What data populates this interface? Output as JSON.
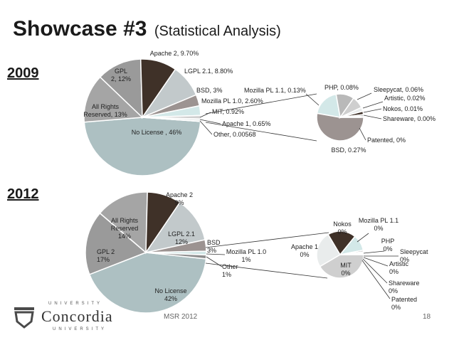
{
  "slide": {
    "title": "Showcase #3",
    "subtitle": "(Statistical Analysis)",
    "footer_venue": "MSR 2012",
    "page_number": "18",
    "logo_name": "Concordia",
    "logo_line": "UNIVERSITY"
  },
  "colors": {
    "no_license": "#adc0c2",
    "all_rights": "#a5a5a5",
    "gpl": "#9a9a9a",
    "apache2": "#3f3128",
    "lgpl": "#c2c9cb",
    "bsd": "#9c9391",
    "mozilla10": "#d3e8e8",
    "mit": "#cfcfcf",
    "apache1": "#e9ecec",
    "other": "#8e8e8e",
    "patented": "#4c3c33",
    "php": "#b9b9b9",
    "line": "#333333"
  },
  "chart_data": [
    {
      "type": "pie",
      "title": "2009",
      "series": [
        {
          "name": "No License",
          "value": 46,
          "label": "No License , 46%"
        },
        {
          "name": "All Rights Reserved",
          "value": 13,
          "label": "All Rights Reserved, 13%"
        },
        {
          "name": "GPL 2",
          "value": 12,
          "label": "GPL 2, 12%"
        },
        {
          "name": "Apache 2",
          "value": 9.7,
          "label": "Apache 2, 9.70%"
        },
        {
          "name": "LGPL 2.1",
          "value": 8.8,
          "label": "LGPL 2.1, 8.80%"
        },
        {
          "name": "BSD",
          "value": 3,
          "label": "BSD, 3%"
        },
        {
          "name": "Mozilla PL 1.0",
          "value": 2.6,
          "label": "Mozilla PL 1.0, 2.60%"
        },
        {
          "name": "MIT",
          "value": 0.92,
          "label": "MIT, 0.92%"
        },
        {
          "name": "Apache 1",
          "value": 0.65,
          "label": "Apache 1, 0.65%"
        },
        {
          "name": "Other",
          "value": 0.00568,
          "label": "Other, 0.00568"
        }
      ],
      "breakout": [
        {
          "name": "BSD",
          "value": 0.27,
          "label": "BSD, 0.27%"
        },
        {
          "name": "Mozilla PL 1.1",
          "value": 0.13,
          "label": "Mozilla PL 1.1, 0.13%"
        },
        {
          "name": "PHP",
          "value": 0.08,
          "label": "PHP, 0.08%"
        },
        {
          "name": "Sleepycat",
          "value": 0.06,
          "label": "Sleepycat, 0.06%"
        },
        {
          "name": "Artistic",
          "value": 0.02,
          "label": "Artistic, 0.02%"
        },
        {
          "name": "Nokos",
          "value": 0.01,
          "label": "Nokos, 0.01%"
        },
        {
          "name": "Shareware",
          "value": 0.0,
          "label": "Shareware, 0.00%"
        },
        {
          "name": "Patented",
          "value": 0,
          "label": "Patented, 0%"
        }
      ]
    },
    {
      "type": "pie",
      "title": "2012",
      "series": [
        {
          "name": "No License",
          "value": 42,
          "label": [
            "No License",
            "42%"
          ]
        },
        {
          "name": "GPL 2",
          "value": 17,
          "label": [
            "GPL 2",
            "17%"
          ]
        },
        {
          "name": "All Rights Reserved",
          "value": 14,
          "label": [
            "All Rights",
            "Reserved",
            "14%"
          ]
        },
        {
          "name": "Apache 2",
          "value": 9,
          "label": [
            "Apache 2",
            "9%"
          ]
        },
        {
          "name": "LGPL 2.1",
          "value": 12,
          "label": [
            "LGPL 2.1",
            "12%"
          ]
        },
        {
          "name": "BSD",
          "value": 3,
          "label": [
            "BSD",
            "3%"
          ]
        },
        {
          "name": "Mozilla PL 1.0",
          "value": 1,
          "label": [
            "Mozilla PL 1.0",
            "1%"
          ]
        },
        {
          "name": "Other",
          "value": 1,
          "label": [
            "Other",
            "1%"
          ]
        }
      ],
      "breakout": [
        {
          "name": "MIT",
          "value": 0,
          "label": [
            "MIT",
            "0%"
          ]
        },
        {
          "name": "Apache 1",
          "value": 0,
          "label": [
            "Apache 1",
            "0%"
          ]
        },
        {
          "name": "Nokos",
          "value": 0,
          "label": [
            "Nokos",
            "0%"
          ]
        },
        {
          "name": "Mozilla PL 1.1",
          "value": 0,
          "label": [
            "Mozilla PL 1.1",
            "0%"
          ]
        },
        {
          "name": "PHP",
          "value": 0,
          "label": [
            "PHP",
            "0%"
          ]
        },
        {
          "name": "Sleepycat",
          "value": 0,
          "label": [
            "Sleepycat",
            "0%"
          ]
        },
        {
          "name": "Artistic",
          "value": 0,
          "label": [
            "Artistic",
            "0%"
          ]
        },
        {
          "name": "Shareware",
          "value": 0,
          "label": [
            "Shareware",
            "0%"
          ]
        },
        {
          "name": "Patented",
          "value": 0,
          "label": [
            "Patented",
            "0%"
          ]
        }
      ]
    }
  ]
}
